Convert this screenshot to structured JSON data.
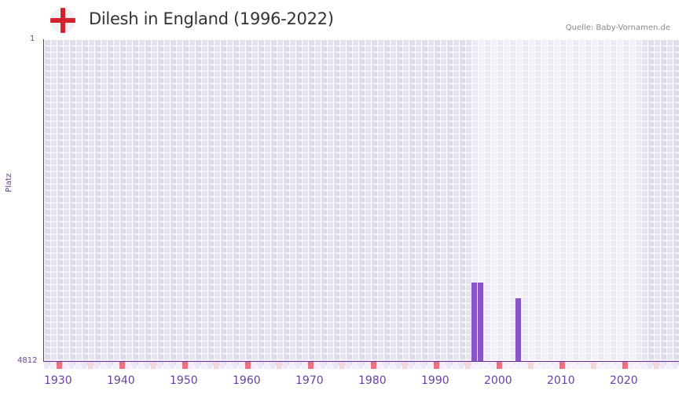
{
  "header": {
    "title": "Dilesh in England (1996-2022)",
    "flag_icon": "england-flag-icon",
    "source": "Quelle: Baby-Vornamen.de"
  },
  "colors": {
    "bar": "#8b55c6",
    "axis": "#6a2fa0",
    "decade_marker": "#e57480",
    "half_decade_marker": "#f5d6de",
    "grid_dark": "#e3dff0",
    "grid_light": "#f1eefb"
  },
  "chart_data": {
    "type": "bar",
    "title": "Dilesh in England (1996-2022)",
    "xlabel": "",
    "ylabel": "Platz",
    "y_inverted": true,
    "ylim": [
      1,
      4812
    ],
    "y_ticks": [
      "1",
      "4812"
    ],
    "x_range": [
      1928,
      2028
    ],
    "x_ticks": [
      "1930",
      "1940",
      "1950",
      "1960",
      "1970",
      "1980",
      "1990",
      "2000",
      "2010",
      "2020"
    ],
    "highlight_range": [
      1996,
      2022
    ],
    "categories": [
      "1996",
      "1997",
      "2003"
    ],
    "values": [
      3639,
      3639,
      3873
    ],
    "grid": true,
    "legend": null
  },
  "axis": {
    "y_title": "Platz",
    "y_top": "1",
    "y_bottom": "4812",
    "x_labels": [
      "1930",
      "1940",
      "1950",
      "1960",
      "1970",
      "1980",
      "1990",
      "2000",
      "2010",
      "2020"
    ]
  }
}
